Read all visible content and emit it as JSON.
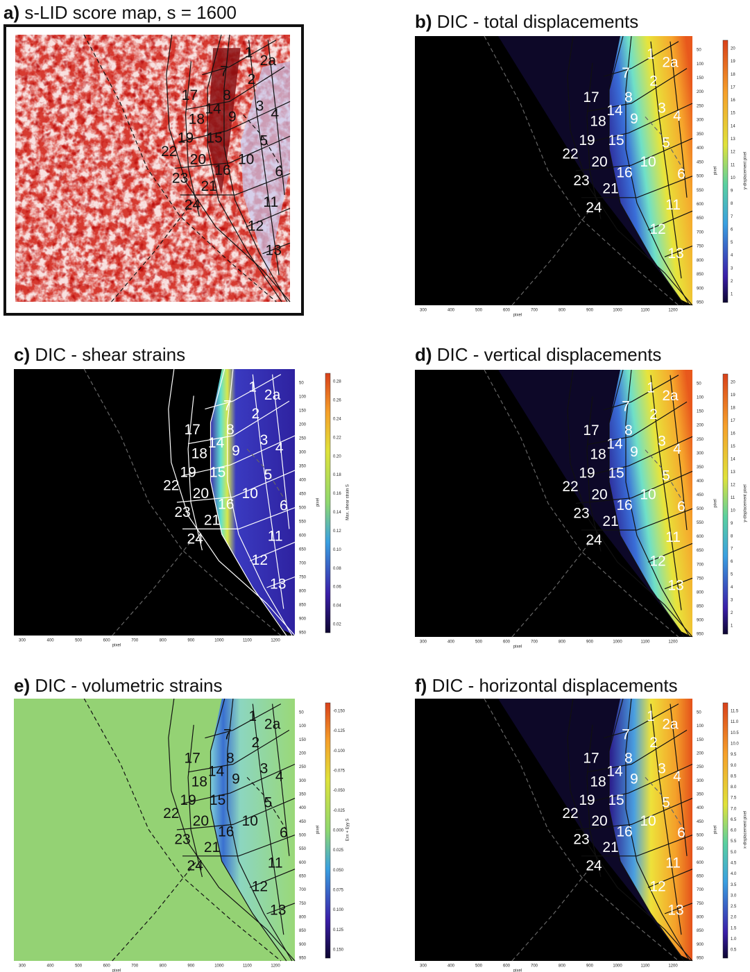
{
  "panels": [
    {
      "label": "a)",
      "title": "s-LID score map, s = 1600",
      "zones": [
        "1",
        "2a",
        "2",
        "3",
        "4",
        "5",
        "6",
        "7",
        "8",
        "9",
        "10",
        "11",
        "12",
        "13",
        "14",
        "15",
        "16",
        "17",
        "18",
        "19",
        "20",
        "21",
        "22",
        "23",
        "24"
      ]
    },
    {
      "label": "b)",
      "title": "DIC - total displacements",
      "zones": [
        "1",
        "2a",
        "2",
        "3",
        "4",
        "5",
        "6",
        "7",
        "8",
        "9",
        "10",
        "11",
        "12",
        "13",
        "14",
        "15",
        "16",
        "17",
        "18",
        "19",
        "20",
        "21",
        "22",
        "23",
        "24"
      ],
      "x_ticks": [
        "300",
        "400",
        "500",
        "600",
        "700",
        "800",
        "900",
        "1000",
        "1100",
        "1200"
      ],
      "x_axis_label": "pixel",
      "y_ticks": [
        "50",
        "100",
        "150",
        "200",
        "250",
        "300",
        "350",
        "400",
        "450",
        "500",
        "550",
        "600",
        "650",
        "700",
        "750",
        "800",
        "850",
        "900",
        "950"
      ],
      "y_axis_label": "pixel",
      "colorbar_ticks": [
        "20",
        "19",
        "18",
        "17",
        "16",
        "15",
        "14",
        "13",
        "12",
        "11",
        "10",
        "9",
        "8",
        "7",
        "6",
        "5",
        "4",
        "3",
        "2",
        "1"
      ],
      "colorbar_label": "y-displacement pixel"
    },
    {
      "label": "c)",
      "title": "DIC - shear strains",
      "zones": [
        "1",
        "2a",
        "2",
        "3",
        "4",
        "5",
        "6",
        "7",
        "8",
        "9",
        "10",
        "11",
        "12",
        "13",
        "14",
        "15",
        "16",
        "17",
        "18",
        "19",
        "20",
        "21",
        "22",
        "23",
        "24"
      ],
      "x_ticks": [
        "300",
        "400",
        "500",
        "600",
        "700",
        "800",
        "900",
        "1000",
        "1100",
        "1200"
      ],
      "x_axis_label": "pixel",
      "y_ticks": [
        "50",
        "100",
        "150",
        "200",
        "250",
        "300",
        "350",
        "400",
        "450",
        "500",
        "550",
        "600",
        "650",
        "700",
        "750",
        "800",
        "850",
        "900",
        "950"
      ],
      "y_axis_label": "pixel",
      "colorbar_ticks": [
        "0.28",
        "0.26",
        "0.24",
        "0.22",
        "0.20",
        "0.18",
        "0.16",
        "0.14",
        "0.12",
        "0.10",
        "0.08",
        "0.06",
        "0.04",
        "0.02"
      ],
      "colorbar_label": "Max. shear strain S"
    },
    {
      "label": "d)",
      "title": "DIC - vertical displacements",
      "zones": [
        "1",
        "2a",
        "2",
        "3",
        "4",
        "5",
        "6",
        "7",
        "8",
        "9",
        "10",
        "11",
        "12",
        "13",
        "14",
        "15",
        "16",
        "17",
        "18",
        "19",
        "20",
        "21",
        "22",
        "23",
        "24"
      ],
      "x_ticks": [
        "300",
        "400",
        "500",
        "600",
        "700",
        "800",
        "900",
        "1000",
        "1100",
        "1200"
      ],
      "x_axis_label": "pixel",
      "y_ticks": [
        "50",
        "100",
        "150",
        "200",
        "250",
        "300",
        "350",
        "400",
        "450",
        "500",
        "550",
        "600",
        "650",
        "700",
        "750",
        "800",
        "850",
        "900",
        "950"
      ],
      "y_axis_label": "pixel",
      "colorbar_ticks": [
        "20",
        "19",
        "18",
        "17",
        "16",
        "15",
        "14",
        "13",
        "12",
        "11",
        "10",
        "9",
        "8",
        "7",
        "6",
        "5",
        "4",
        "3",
        "2",
        "1"
      ],
      "colorbar_label": "y-displacement pixel"
    },
    {
      "label": "e)",
      "title": "DIC - volumetric strains",
      "zones": [
        "1",
        "2a",
        "2",
        "3",
        "4",
        "5",
        "6",
        "7",
        "8",
        "9",
        "10",
        "11",
        "12",
        "13",
        "14",
        "15",
        "16",
        "17",
        "18",
        "19",
        "20",
        "21",
        "22",
        "23",
        "24"
      ],
      "x_ticks": [
        "300",
        "400",
        "500",
        "600",
        "700",
        "800",
        "900",
        "1000",
        "1100",
        "1200"
      ],
      "x_axis_label": "pixel",
      "y_ticks": [
        "50",
        "100",
        "150",
        "200",
        "250",
        "300",
        "350",
        "400",
        "450",
        "500",
        "550",
        "600",
        "650",
        "700",
        "750",
        "800",
        "850",
        "900",
        "950"
      ],
      "y_axis_label": "pixel",
      "colorbar_ticks": [
        "-0.150",
        "-0.125",
        "-0.100",
        "-0.075",
        "-0.050",
        "-0.025",
        "0.000",
        "0.025",
        "0.050",
        "0.075",
        "0.100",
        "0.125",
        "0.150"
      ],
      "colorbar_label": "Exx + Eyy S"
    },
    {
      "label": "f)",
      "title": "DIC -  horizontal displacements",
      "zones": [
        "1",
        "2a",
        "2",
        "3",
        "4",
        "5",
        "6",
        "7",
        "8",
        "9",
        "10",
        "11",
        "12",
        "13",
        "14",
        "15",
        "16",
        "17",
        "18",
        "19",
        "20",
        "21",
        "22",
        "23",
        "24"
      ],
      "x_ticks": [
        "300",
        "400",
        "500",
        "600",
        "700",
        "800",
        "900",
        "1000",
        "1100",
        "1200"
      ],
      "x_axis_label": "pixel",
      "y_ticks": [
        "50",
        "100",
        "150",
        "200",
        "250",
        "300",
        "350",
        "400",
        "450",
        "500",
        "550",
        "600",
        "650",
        "700",
        "750",
        "800",
        "850",
        "900",
        "950"
      ],
      "y_axis_label": "pixel",
      "colorbar_ticks": [
        "11.5",
        "11.0",
        "10.5",
        "10.0",
        "9.5",
        "9.0",
        "8.5",
        "8.0",
        "7.5",
        "7.0",
        "6.5",
        "6.0",
        "5.5",
        "5.0",
        "4.5",
        "4.0",
        "3.5",
        "3.0",
        "2.5",
        "2.0",
        "1.5",
        "1.0",
        "0.5"
      ],
      "colorbar_label": "x-displacement pixel"
    }
  ]
}
